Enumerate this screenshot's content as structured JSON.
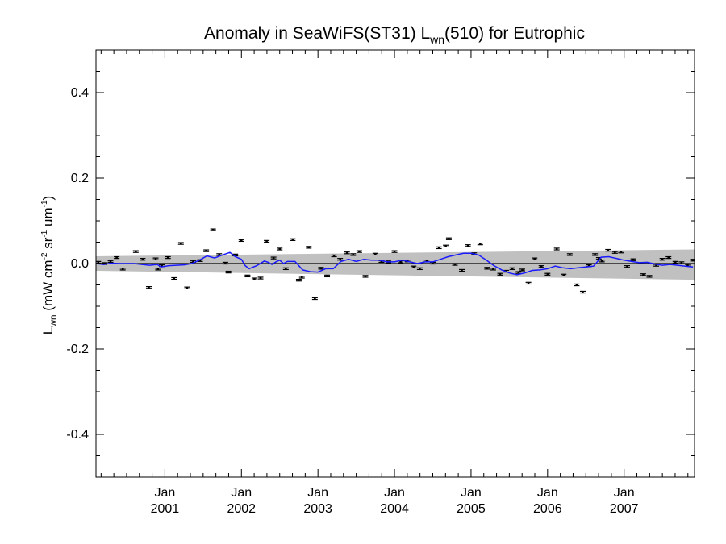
{
  "chart_data": {
    "type": "line",
    "title": {
      "prefix": "Anomaly in SeaWiFS(ST31) L",
      "sub": "wn",
      "suffix": "(510) for Eutrophic"
    },
    "ylabel": {
      "l": "L",
      "wn": "wn",
      "units_a": " (mW cm",
      "exp1": "-2",
      "units_b": " sr",
      "exp2": "-1",
      "units_c": " um",
      "exp3": "-1",
      "units_d": ")"
    },
    "ylim": [
      -0.5,
      0.5
    ],
    "y_ticks": [
      -0.4,
      -0.2,
      0.0,
      0.2,
      0.4
    ],
    "y_tick_labels": [
      "-0.4",
      "-0.2",
      "0.0",
      "0.2",
      "0.4"
    ],
    "xlim": [
      2000.1,
      2007.92
    ],
    "x_ticks": [
      2001,
      2002,
      2003,
      2004,
      2005,
      2006,
      2007
    ],
    "x_tick_labels": [
      {
        "month": "Jan",
        "year": "2001"
      },
      {
        "month": "Jan",
        "year": "2002"
      },
      {
        "month": "Jan",
        "year": "2003"
      },
      {
        "month": "Jan",
        "year": "2004"
      },
      {
        "month": "Jan",
        "year": "2005"
      },
      {
        "month": "Jan",
        "year": "2006"
      },
      {
        "month": "Jan",
        "year": "2007"
      }
    ],
    "grid": false,
    "zero_line": 0.0,
    "uncertainty_band": {
      "x": [
        2000.1,
        2007.92
      ],
      "upper": [
        0.017,
        0.033
      ],
      "lower": [
        -0.017,
        -0.038
      ],
      "color": "#c0c0c0"
    },
    "colors": {
      "points": "#000000",
      "smooth": "#1a1aff",
      "band": "#c0c0c0",
      "axis": "#000000"
    },
    "series": [
      {
        "kind": "points_with_errorbars",
        "errorbar": 0.002,
        "points": [
          [
            2000.13,
            0.003
          ],
          [
            2000.21,
            0.0
          ],
          [
            2000.29,
            0.005
          ],
          [
            2000.37,
            0.014
          ],
          [
            2000.45,
            -0.013
          ],
          [
            2000.62,
            0.028
          ],
          [
            2000.71,
            0.01
          ],
          [
            2000.79,
            -0.056
          ],
          [
            2000.88,
            0.011
          ],
          [
            2000.91,
            -0.013
          ],
          [
            2000.96,
            -0.005
          ],
          [
            2001.04,
            0.014
          ],
          [
            2001.12,
            -0.035
          ],
          [
            2001.21,
            0.047
          ],
          [
            2001.29,
            -0.057
          ],
          [
            2001.37,
            0.005
          ],
          [
            2001.46,
            0.007
          ],
          [
            2001.54,
            0.03
          ],
          [
            2001.63,
            0.079
          ],
          [
            2001.71,
            0.021
          ],
          [
            2001.79,
            0.001
          ],
          [
            2001.83,
            -0.02
          ],
          [
            2001.92,
            0.02
          ],
          [
            2002.0,
            0.054
          ],
          [
            2002.08,
            -0.029
          ],
          [
            2002.17,
            -0.036
          ],
          [
            2002.25,
            -0.034
          ],
          [
            2002.33,
            0.052
          ],
          [
            2002.42,
            0.013
          ],
          [
            2002.5,
            0.034
          ],
          [
            2002.58,
            -0.012
          ],
          [
            2002.67,
            0.056
          ],
          [
            2002.75,
            -0.039
          ],
          [
            2002.79,
            -0.032
          ],
          [
            2002.88,
            0.038
          ],
          [
            2002.96,
            -0.082
          ],
          [
            2003.04,
            -0.011
          ],
          [
            2003.12,
            -0.029
          ],
          [
            2003.21,
            0.018
          ],
          [
            2003.29,
            0.01
          ],
          [
            2003.38,
            0.025
          ],
          [
            2003.46,
            0.021
          ],
          [
            2003.54,
            0.028
          ],
          [
            2003.62,
            -0.03
          ],
          [
            2003.75,
            0.022
          ],
          [
            2003.83,
            0.005
          ],
          [
            2003.92,
            0.004
          ],
          [
            2004.0,
            0.028
          ],
          [
            2004.08,
            0.004
          ],
          [
            2004.17,
            0.006
          ],
          [
            2004.25,
            -0.008
          ],
          [
            2004.33,
            -0.012
          ],
          [
            2004.42,
            0.006
          ],
          [
            2004.5,
            0.001
          ],
          [
            2004.58,
            0.037
          ],
          [
            2004.67,
            0.041
          ],
          [
            2004.71,
            0.058
          ],
          [
            2004.79,
            -0.002
          ],
          [
            2004.88,
            -0.016
          ],
          [
            2004.96,
            0.042
          ],
          [
            2005.04,
            0.023
          ],
          [
            2005.12,
            0.046
          ],
          [
            2005.21,
            -0.011
          ],
          [
            2005.29,
            -0.013
          ],
          [
            2005.38,
            -0.025
          ],
          [
            2005.46,
            -0.018
          ],
          [
            2005.54,
            -0.012
          ],
          [
            2005.62,
            -0.021
          ],
          [
            2005.67,
            -0.015
          ],
          [
            2005.75,
            -0.046
          ],
          [
            2005.83,
            0.011
          ],
          [
            2005.92,
            -0.007
          ],
          [
            2006.0,
            -0.025
          ],
          [
            2006.12,
            0.034
          ],
          [
            2006.21,
            -0.027
          ],
          [
            2006.29,
            0.021
          ],
          [
            2006.38,
            -0.05
          ],
          [
            2006.46,
            -0.067
          ],
          [
            2006.54,
            -0.005
          ],
          [
            2006.62,
            0.021
          ],
          [
            2006.67,
            0.012
          ],
          [
            2006.71,
            0.006
          ],
          [
            2006.79,
            0.031
          ],
          [
            2006.88,
            0.026
          ],
          [
            2006.96,
            0.027
          ],
          [
            2007.04,
            -0.007
          ],
          [
            2007.12,
            0.009
          ],
          [
            2007.25,
            -0.026
          ],
          [
            2007.33,
            -0.03
          ],
          [
            2007.42,
            -0.004
          ],
          [
            2007.5,
            0.01
          ],
          [
            2007.58,
            0.014
          ],
          [
            2007.67,
            0.003
          ],
          [
            2007.75,
            0.002
          ],
          [
            2007.83,
            -0.004
          ],
          [
            2007.9,
            0.008
          ]
        ]
      },
      {
        "kind": "smoothed_line",
        "points": [
          [
            2000.1,
            0.0
          ],
          [
            2000.2,
            -0.002
          ],
          [
            2000.3,
            0.001
          ],
          [
            2000.4,
            0.0
          ],
          [
            2000.5,
            0.0
          ],
          [
            2000.6,
            0.0
          ],
          [
            2000.7,
            -0.002
          ],
          [
            2000.8,
            -0.004
          ],
          [
            2000.9,
            -0.002
          ],
          [
            2000.95,
            -0.008
          ],
          [
            2001.05,
            -0.005
          ],
          [
            2001.15,
            -0.004
          ],
          [
            2001.25,
            -0.003
          ],
          [
            2001.35,
            0.0
          ],
          [
            2001.45,
            0.008
          ],
          [
            2001.55,
            0.018
          ],
          [
            2001.65,
            0.013
          ],
          [
            2001.75,
            0.02
          ],
          [
            2001.85,
            0.026
          ],
          [
            2001.92,
            0.016
          ],
          [
            2002.0,
            0.01
          ],
          [
            2002.05,
            -0.005
          ],
          [
            2002.1,
            -0.012
          ],
          [
            2002.2,
            -0.005
          ],
          [
            2002.3,
            0.006
          ],
          [
            2002.35,
            0.003
          ],
          [
            2002.4,
            -0.002
          ],
          [
            2002.45,
            0.004
          ],
          [
            2002.5,
            0.008
          ],
          [
            2002.55,
            0.0
          ],
          [
            2002.6,
            0.005
          ],
          [
            2002.7,
            0.005
          ],
          [
            2002.8,
            -0.015
          ],
          [
            2002.9,
            -0.019
          ],
          [
            2003.0,
            -0.02
          ],
          [
            2003.1,
            -0.012
          ],
          [
            2003.2,
            -0.012
          ],
          [
            2003.3,
            0.005
          ],
          [
            2003.4,
            0.01
          ],
          [
            2003.5,
            0.005
          ],
          [
            2003.6,
            0.01
          ],
          [
            2003.7,
            0.008
          ],
          [
            2003.8,
            0.008
          ],
          [
            2003.9,
            0.004
          ],
          [
            2004.0,
            0.004
          ],
          [
            2004.1,
            0.008
          ],
          [
            2004.2,
            0.004
          ],
          [
            2004.3,
            0.0
          ],
          [
            2004.4,
            0.004
          ],
          [
            2004.5,
            0.004
          ],
          [
            2004.6,
            0.01
          ],
          [
            2004.7,
            0.016
          ],
          [
            2004.8,
            0.02
          ],
          [
            2004.9,
            0.024
          ],
          [
            2005.0,
            0.024
          ],
          [
            2005.1,
            0.02
          ],
          [
            2005.2,
            0.008
          ],
          [
            2005.3,
            -0.005
          ],
          [
            2005.4,
            -0.015
          ],
          [
            2005.5,
            -0.022
          ],
          [
            2005.6,
            -0.026
          ],
          [
            2005.7,
            -0.022
          ],
          [
            2005.8,
            -0.016
          ],
          [
            2005.9,
            -0.015
          ],
          [
            2006.0,
            -0.012
          ],
          [
            2006.1,
            -0.006
          ],
          [
            2006.2,
            -0.01
          ],
          [
            2006.3,
            -0.012
          ],
          [
            2006.4,
            -0.01
          ],
          [
            2006.5,
            -0.008
          ],
          [
            2006.6,
            -0.006
          ],
          [
            2006.7,
            0.015
          ],
          [
            2006.8,
            0.016
          ],
          [
            2006.9,
            0.012
          ],
          [
            2007.0,
            0.008
          ],
          [
            2007.1,
            0.005
          ],
          [
            2007.2,
            0.002
          ],
          [
            2007.3,
            0.003
          ],
          [
            2007.4,
            -0.001
          ],
          [
            2007.5,
            -0.004
          ],
          [
            2007.6,
            -0.002
          ],
          [
            2007.7,
            -0.004
          ],
          [
            2007.8,
            -0.006
          ],
          [
            2007.9,
            -0.008
          ]
        ]
      }
    ]
  }
}
